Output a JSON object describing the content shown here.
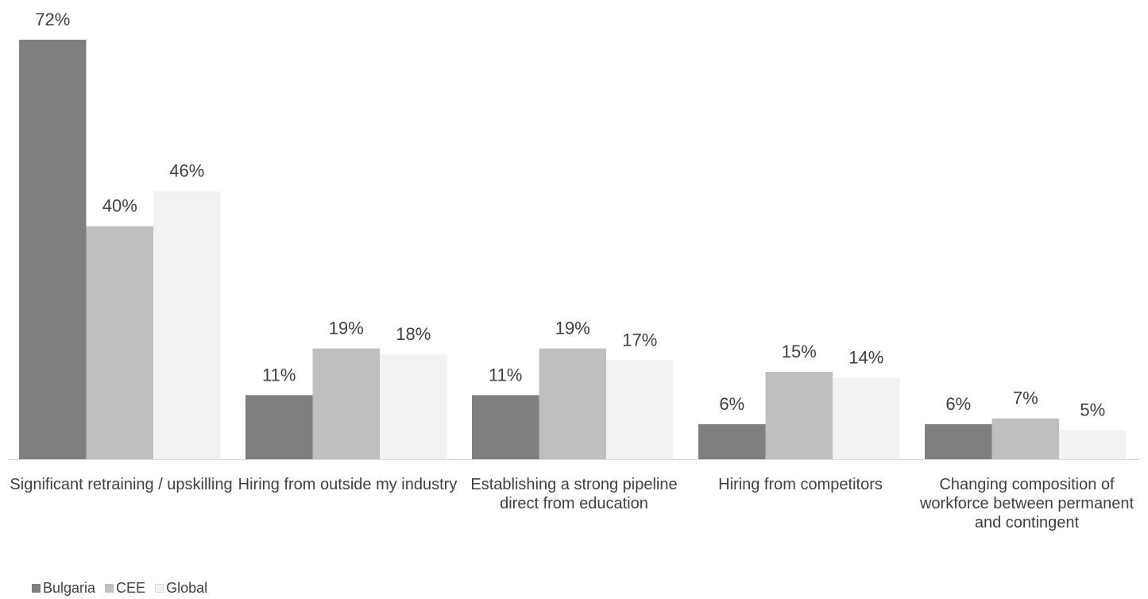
{
  "chart_data": {
    "type": "bar",
    "categories": [
      "Significant retraining / upskilling",
      "Hiring from outside my industry",
      "Establishing a strong pipeline direct from education",
      "Hiring from competitors",
      "Changing composition of workforce between permanent and contingent"
    ],
    "series": [
      {
        "name": "Bulgaria",
        "color": "#7f7f7f",
        "values": [
          72,
          11,
          11,
          6,
          6
        ],
        "labels": [
          "72%",
          "11%",
          "11%",
          "6%",
          "6%"
        ]
      },
      {
        "name": "CEE",
        "color": "#bfbfbf",
        "values": [
          40,
          19,
          19,
          15,
          7
        ],
        "labels": [
          "40%",
          "19%",
          "19%",
          "15%",
          "7%"
        ]
      },
      {
        "name": "Global",
        "color": "#f2f2f2",
        "values": [
          46,
          18,
          17,
          14,
          5
        ],
        "labels": [
          "46%",
          "18%",
          "17%",
          "14%",
          "5%"
        ]
      }
    ],
    "ylim": [
      0,
      72
    ],
    "grid": false,
    "legend": "bottom-left",
    "title": "",
    "xlabel": "",
    "ylabel": ""
  }
}
